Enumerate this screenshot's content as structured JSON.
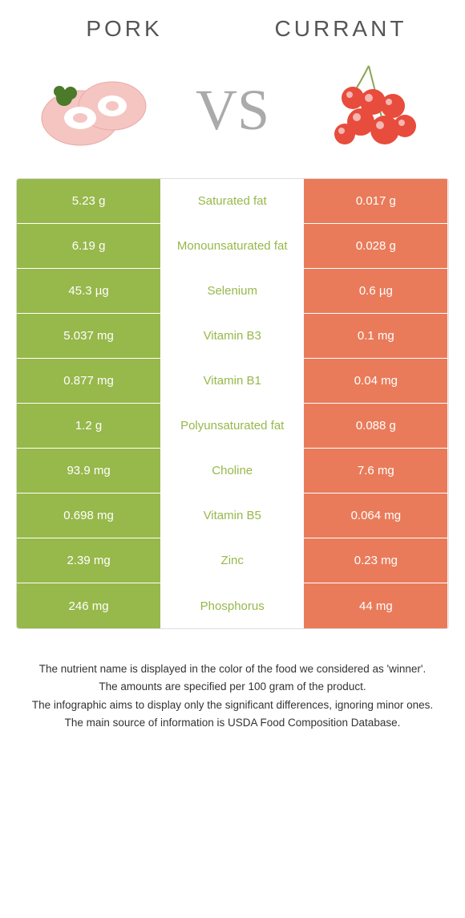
{
  "header": {
    "left_name": "PORK",
    "right_name": "CURRANT",
    "vs_text": "VS"
  },
  "colors": {
    "left_fill": "#97b84b",
    "right_fill": "#e97b5a",
    "row_border": "#ffffff",
    "background": "#ffffff",
    "text": "#333333",
    "winner_left_text": "#97b84b",
    "winner_right_text": "#e97b5a"
  },
  "table": {
    "rows": [
      {
        "left": "5.23 g",
        "label": "Saturated fat",
        "right": "0.017 g",
        "winner": "left"
      },
      {
        "left": "6.19 g",
        "label": "Monounsaturated fat",
        "right": "0.028 g",
        "winner": "left"
      },
      {
        "left": "45.3 µg",
        "label": "Selenium",
        "right": "0.6 µg",
        "winner": "left"
      },
      {
        "left": "5.037 mg",
        "label": "Vitamin B3",
        "right": "0.1 mg",
        "winner": "left"
      },
      {
        "left": "0.877 mg",
        "label": "Vitamin B1",
        "right": "0.04 mg",
        "winner": "left"
      },
      {
        "left": "1.2 g",
        "label": "Polyunsaturated fat",
        "right": "0.088 g",
        "winner": "left"
      },
      {
        "left": "93.9 mg",
        "label": "Choline",
        "right": "7.6 mg",
        "winner": "left"
      },
      {
        "left": "0.698 mg",
        "label": "Vitamin B5",
        "right": "0.064 mg",
        "winner": "left"
      },
      {
        "left": "2.39 mg",
        "label": "Zinc",
        "right": "0.23 mg",
        "winner": "left"
      },
      {
        "left": "246 mg",
        "label": "Phosphorus",
        "right": "44 mg",
        "winner": "left"
      }
    ]
  },
  "footer": {
    "line1": "The nutrient name is displayed in the color of the food we considered as 'winner'.",
    "line2": "The amounts are specified per 100 gram of the product.",
    "line3": "The infographic aims to display only the significant differences, ignoring minor ones.",
    "line4": "The main source of information is USDA Food Composition Database."
  }
}
